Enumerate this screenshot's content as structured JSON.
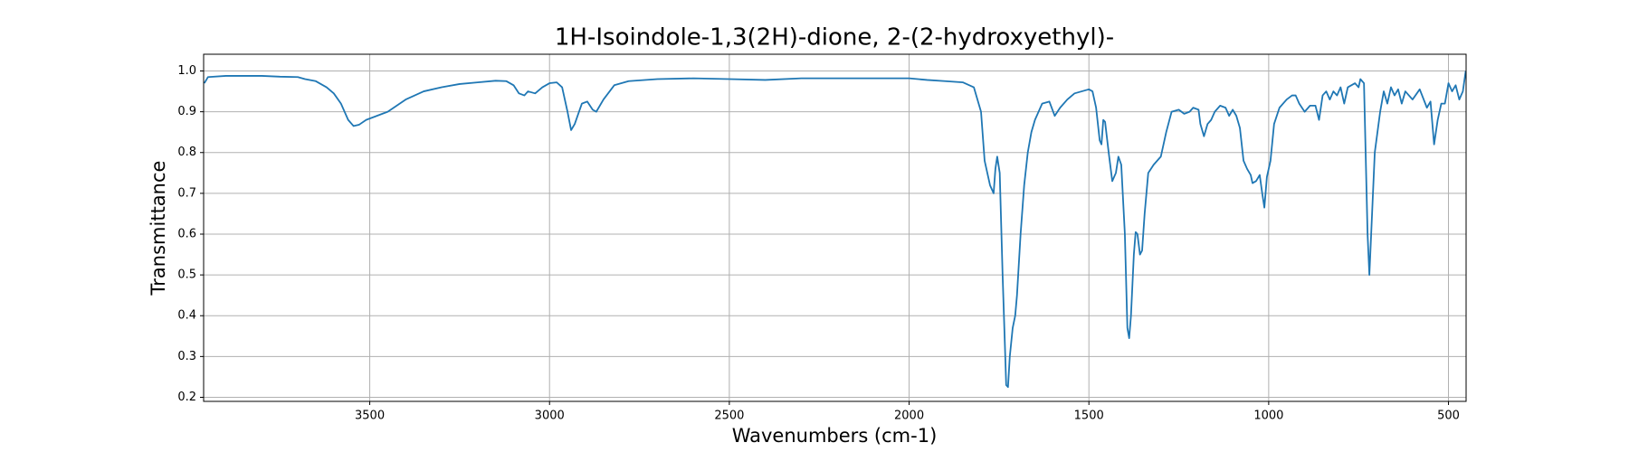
{
  "chart_data": {
    "type": "line",
    "title": "1H-Isoindole-1,3(2H)-dione, 2-(2-hydroxyethyl)-",
    "x_label": "Wavenumbers (cm-1)",
    "y_label": "Transmittance",
    "xlim": [
      3962,
      451
    ],
    "ylim": [
      0.19,
      1.041
    ],
    "xticks": [
      3500,
      3000,
      2500,
      2000,
      1500,
      1000,
      500
    ],
    "yticks": [
      0.2,
      0.3,
      0.4,
      0.5,
      0.6,
      0.7,
      0.8,
      0.9,
      {
        "value": 1,
        "label": "1.0"
      }
    ],
    "grid": true,
    "x": [
      3960,
      3950,
      3900,
      3800,
      3750,
      3700,
      3680,
      3650,
      3620,
      3600,
      3580,
      3560,
      3545,
      3530,
      3510,
      3480,
      3450,
      3400,
      3350,
      3300,
      3250,
      3200,
      3150,
      3120,
      3100,
      3085,
      3070,
      3060,
      3040,
      3020,
      3000,
      2980,
      2965,
      2950,
      2940,
      2930,
      2910,
      2895,
      2880,
      2870,
      2850,
      2820,
      2780,
      2700,
      2600,
      2500,
      2400,
      2300,
      2200,
      2100,
      2000,
      1950,
      1900,
      1850,
      1820,
      1800,
      1790,
      1775,
      1765,
      1760,
      1755,
      1748,
      1740,
      1730,
      1725,
      1720,
      1712,
      1705,
      1700,
      1690,
      1680,
      1670,
      1660,
      1650,
      1640,
      1630,
      1610,
      1595,
      1580,
      1560,
      1540,
      1520,
      1500,
      1490,
      1480,
      1470,
      1465,
      1460,
      1455,
      1445,
      1435,
      1425,
      1418,
      1410,
      1400,
      1393,
      1388,
      1383,
      1375,
      1370,
      1365,
      1358,
      1352,
      1345,
      1335,
      1320,
      1300,
      1285,
      1270,
      1250,
      1235,
      1220,
      1210,
      1195,
      1190,
      1180,
      1170,
      1160,
      1150,
      1135,
      1120,
      1110,
      1100,
      1090,
      1080,
      1070,
      1060,
      1050,
      1045,
      1035,
      1025,
      1018,
      1012,
      1005,
      995,
      985,
      970,
      950,
      935,
      925,
      915,
      900,
      885,
      870,
      860,
      850,
      840,
      830,
      820,
      810,
      800,
      790,
      780,
      770,
      760,
      750,
      745,
      735,
      725,
      720,
      715,
      705,
      690,
      680,
      670,
      660,
      650,
      640,
      630,
      620,
      600,
      580,
      560,
      550,
      540,
      530,
      520,
      510,
      500,
      490,
      480,
      470,
      460,
      452
    ],
    "series": [
      {
        "color": "#1f77b4",
        "values": [
          0.97,
          0.985,
          0.988,
          0.988,
          0.986,
          0.985,
          0.98,
          0.975,
          0.96,
          0.945,
          0.92,
          0.88,
          0.865,
          0.868,
          0.88,
          0.89,
          0.9,
          0.93,
          0.95,
          0.96,
          0.968,
          0.972,
          0.976,
          0.975,
          0.965,
          0.945,
          0.94,
          0.95,
          0.945,
          0.96,
          0.97,
          0.972,
          0.96,
          0.9,
          0.855,
          0.87,
          0.92,
          0.925,
          0.905,
          0.9,
          0.93,
          0.965,
          0.975,
          0.98,
          0.982,
          0.98,
          0.978,
          0.982,
          0.982,
          0.982,
          0.982,
          0.978,
          0.975,
          0.972,
          0.96,
          0.9,
          0.78,
          0.72,
          0.7,
          0.76,
          0.79,
          0.75,
          0.5,
          0.23,
          0.225,
          0.3,
          0.37,
          0.4,
          0.45,
          0.6,
          0.72,
          0.8,
          0.85,
          0.88,
          0.9,
          0.92,
          0.925,
          0.89,
          0.91,
          0.93,
          0.945,
          0.95,
          0.955,
          0.95,
          0.91,
          0.83,
          0.82,
          0.88,
          0.875,
          0.8,
          0.73,
          0.75,
          0.79,
          0.77,
          0.6,
          0.37,
          0.345,
          0.4,
          0.55,
          0.605,
          0.6,
          0.55,
          0.56,
          0.65,
          0.75,
          0.77,
          0.79,
          0.85,
          0.9,
          0.905,
          0.895,
          0.9,
          0.91,
          0.905,
          0.87,
          0.84,
          0.87,
          0.88,
          0.9,
          0.915,
          0.91,
          0.89,
          0.905,
          0.89,
          0.86,
          0.78,
          0.76,
          0.745,
          0.725,
          0.73,
          0.745,
          0.7,
          0.665,
          0.74,
          0.78,
          0.87,
          0.91,
          0.93,
          0.94,
          0.94,
          0.92,
          0.9,
          0.915,
          0.915,
          0.88,
          0.94,
          0.95,
          0.93,
          0.95,
          0.94,
          0.96,
          0.92,
          0.96,
          0.965,
          0.97,
          0.96,
          0.98,
          0.97,
          0.6,
          0.5,
          0.6,
          0.8,
          0.9,
          0.95,
          0.92,
          0.96,
          0.94,
          0.955,
          0.92,
          0.95,
          0.93,
          0.955,
          0.91,
          0.925,
          0.82,
          0.88,
          0.92,
          0.92,
          0.97,
          0.95,
          0.965,
          0.93,
          0.95,
          1.0
        ]
      }
    ]
  }
}
